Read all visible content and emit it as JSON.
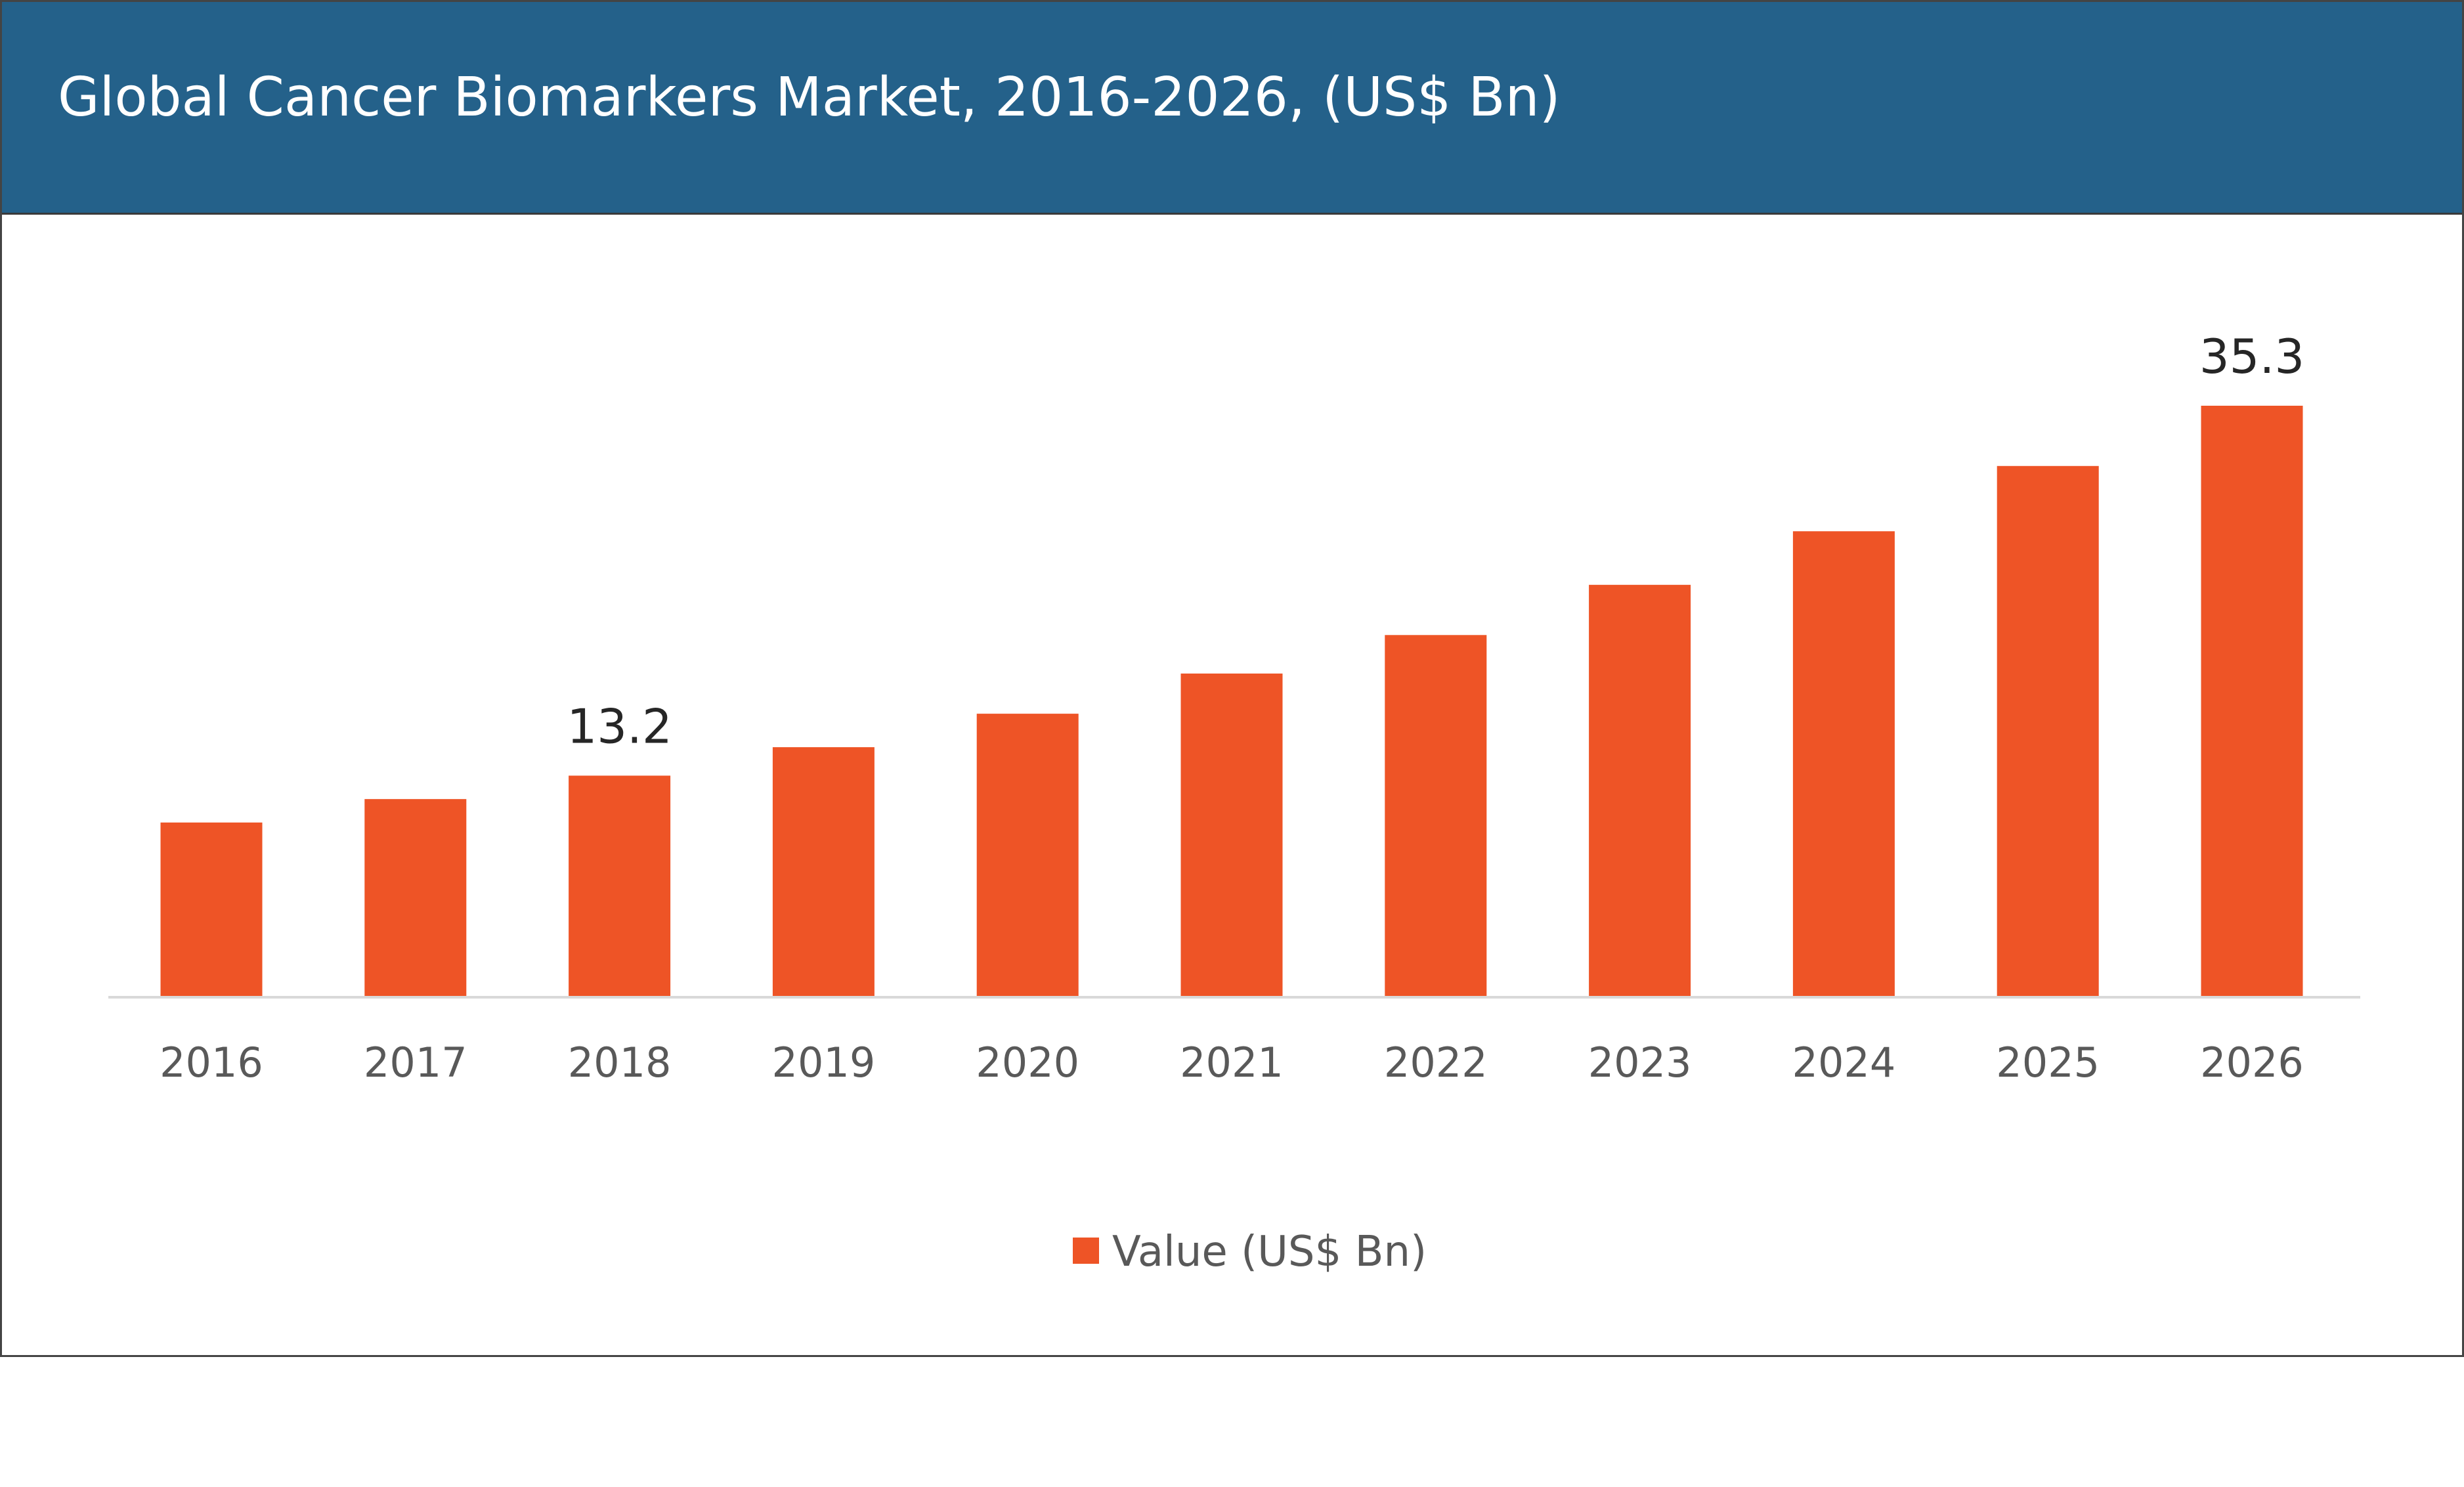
{
  "title": "Global Cancer Biomarkers Market, 2016-2026, (US$ Bn)",
  "colors": {
    "header": "#24618a",
    "bar": "#ee5426",
    "axis_line": "#d9d9d9",
    "tick_text": "#595959",
    "label_text": "#262626"
  },
  "chart_data": {
    "type": "bar",
    "title": "Global Cancer Biomarkers Market, 2016-2026, (US$ Bn)",
    "categories": [
      "2016",
      "2017",
      "2018",
      "2019",
      "2020",
      "2021",
      "2022",
      "2023",
      "2024",
      "2025",
      "2026"
    ],
    "series": [
      {
        "name": "Value (US$ Bn)",
        "values": [
          10.4,
          11.8,
          13.2,
          14.9,
          16.9,
          19.3,
          21.6,
          24.6,
          27.8,
          31.7,
          35.3
        ]
      }
    ],
    "data_labels": [
      {
        "category": "2018",
        "text": "13.2"
      },
      {
        "category": "2026",
        "text": "35.3"
      }
    ],
    "ylim": [
      0,
      35.3
    ],
    "y_axis_shown": false,
    "grid": false,
    "legend": {
      "position": "bottom",
      "entries": [
        "Value (US$ Bn)"
      ]
    }
  }
}
